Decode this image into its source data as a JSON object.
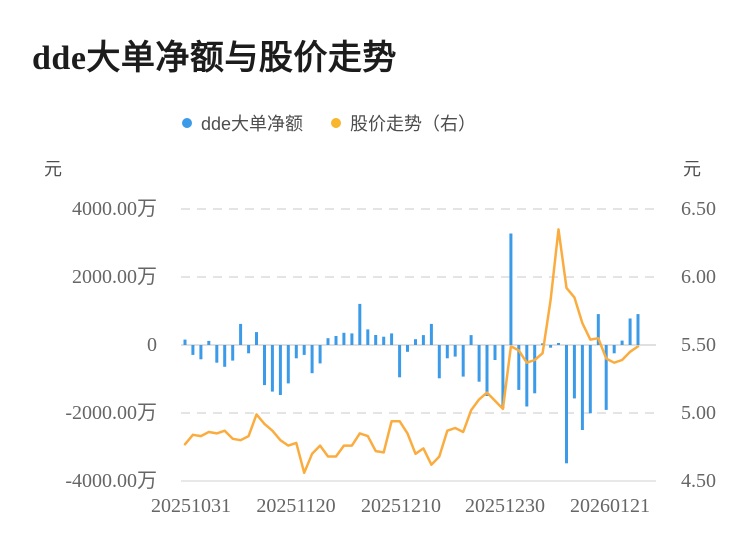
{
  "title": "dde大单净额与股价走势",
  "legend": {
    "items": [
      {
        "label": "dde大单净额",
        "color": "#3c9be8"
      },
      {
        "label": "股价走势（右）",
        "color": "#f8b62d"
      }
    ]
  },
  "axes": {
    "left": {
      "unit": "元",
      "tick_labels": [
        "4000.00万",
        "2000.00万",
        "0",
        "-2000.00万",
        "-4000.00万"
      ]
    },
    "right": {
      "unit": "元",
      "tick_labels": [
        "6.50",
        "6.00",
        "5.50",
        "5.00",
        "4.50"
      ]
    },
    "x": {
      "tick_labels": [
        "20251031",
        "20251120",
        "20251210",
        "20251230",
        "20260121"
      ]
    }
  },
  "colors": {
    "bar": "#3c9be8",
    "line": "#fbac3f",
    "legend_dot_blue": "#3c9be8",
    "legend_dot_yellow": "#f8b62d",
    "grid_dashed": "#e4e4e4",
    "grid_zero": "#e0e0e0",
    "grid_bottom": "#e8e8e8",
    "tick_text": "#666666",
    "title_text": "#1c1c1c"
  },
  "chart_data": {
    "type": "bar",
    "subtype": "bar+line dual-axis combo",
    "title": "dde大单净额与股价走势",
    "x_tick_labels": [
      "20251031",
      "20251120",
      "20251210",
      "20251230",
      "20260121"
    ],
    "left_axis": {
      "label": "元",
      "tick_unit": "万",
      "ylim": [
        -4000,
        4000
      ],
      "ticks": [
        4000,
        2000,
        0,
        -2000,
        -4000
      ],
      "grid": "dashed"
    },
    "right_axis": {
      "label": "元",
      "ylim": [
        4.5,
        6.5
      ],
      "ticks": [
        6.5,
        6.0,
        5.5,
        5.0,
        4.5
      ]
    },
    "legend_position": "top-center",
    "series": [
      {
        "name": "dde大单净额",
        "type": "bar",
        "axis": "left",
        "unit": "万元",
        "color": "#3c9be8",
        "values": [
          160,
          -290,
          -420,
          120,
          -520,
          -640,
          -460,
          620,
          -245,
          380,
          -1180,
          -1370,
          -1470,
          -1130,
          -390,
          -290,
          -830,
          -540,
          200,
          265,
          360,
          340,
          1210,
          460,
          295,
          245,
          340,
          -950,
          -200,
          170,
          290,
          620,
          -980,
          -390,
          -340,
          -930,
          290,
          -1080,
          -1500,
          -440,
          -1860,
          3280,
          -1320,
          -1810,
          -1420,
          50,
          -80,
          60,
          -3480,
          -1570,
          -2500,
          -2010,
          910,
          -1910,
          -245,
          130,
          780,
          910
        ]
      },
      {
        "name": "股价走势（右）",
        "type": "line",
        "axis": "right",
        "unit": "元",
        "color": "#fbac3f",
        "values": [
          4.77,
          4.84,
          4.83,
          4.86,
          4.85,
          4.87,
          4.81,
          4.8,
          4.83,
          4.99,
          4.92,
          4.87,
          4.8,
          4.76,
          4.78,
          4.56,
          4.7,
          4.76,
          4.68,
          4.68,
          4.76,
          4.76,
          4.85,
          4.83,
          4.72,
          4.71,
          4.94,
          4.94,
          4.85,
          4.7,
          4.74,
          4.62,
          4.68,
          4.87,
          4.89,
          4.86,
          5.02,
          5.1,
          5.15,
          5.09,
          5.03,
          5.49,
          5.46,
          5.37,
          5.39,
          5.44,
          5.83,
          6.35,
          5.92,
          5.85,
          5.66,
          5.54,
          5.55,
          5.4,
          5.37,
          5.39,
          5.45,
          5.49
        ]
      }
    ]
  }
}
